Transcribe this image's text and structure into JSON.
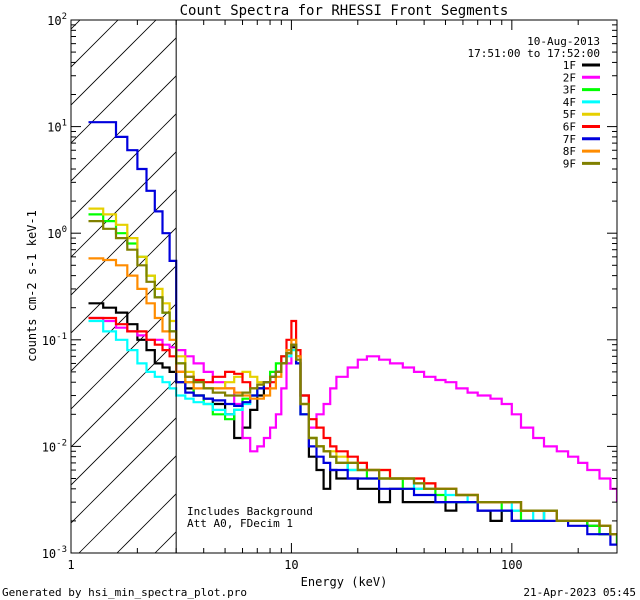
{
  "chart_data": {
    "type": "line",
    "title": "Count Spectra for RHESSI Front Segments",
    "xlabel": "Energy (keV)",
    "ylabel": "counts cm-2 s-1 keV-1",
    "xscale": "log",
    "yscale": "log",
    "xlim": [
      1,
      300
    ],
    "ylim": [
      0.001,
      100
    ],
    "x_tick_labels": [
      {
        "value": 1,
        "label": "1"
      },
      {
        "value": 10,
        "label": "10"
      },
      {
        "value": 100,
        "label": "100"
      }
    ],
    "y_tick_labels": [
      {
        "value": 0.001,
        "base": "10",
        "exp": "-3"
      },
      {
        "value": 0.01,
        "base": "10",
        "exp": "-2"
      },
      {
        "value": 0.1,
        "base": "10",
        "exp": "-1"
      },
      {
        "value": 1,
        "base": "10",
        "exp": "0"
      },
      {
        "value": 10,
        "base": "10",
        "exp": "1"
      },
      {
        "value": 100,
        "base": "10",
        "exp": "2"
      }
    ],
    "excluded_region": {
      "from": 1,
      "to": 3
    },
    "date_label": "10-Aug-2013",
    "time_label": "17:51:00 to 17:52:00",
    "annotations": [
      "Includes Background",
      "Att A0, FDecim 1"
    ],
    "series": [
      {
        "name": "1F",
        "color": "#000000",
        "x": [
          1.2,
          1.4,
          1.6,
          1.8,
          2.0,
          2.2,
          2.4,
          2.6,
          2.8,
          3.0,
          3.3,
          3.6,
          4.0,
          4.4,
          5,
          5.5,
          6,
          6.5,
          7,
          7.5,
          8,
          8.5,
          9,
          9.5,
          10,
          10.5,
          11,
          12,
          13,
          14,
          15,
          16,
          18,
          20,
          22,
          25,
          28,
          32,
          36,
          40,
          45,
          50,
          56,
          63,
          70,
          80,
          90,
          100,
          110,
          125,
          140,
          160,
          180,
          200,
          220,
          250,
          280,
          300
        ],
        "values": [
          0.22,
          0.2,
          0.18,
          0.14,
          0.1,
          0.08,
          0.06,
          0.055,
          0.05,
          0.04,
          0.035,
          0.03,
          0.028,
          0.025,
          0.02,
          0.012,
          0.015,
          0.022,
          0.03,
          0.04,
          0.045,
          0.05,
          0.06,
          0.075,
          0.085,
          0.07,
          0.03,
          0.008,
          0.006,
          0.004,
          0.006,
          0.005,
          0.005,
          0.004,
          0.004,
          0.003,
          0.004,
          0.003,
          0.003,
          0.003,
          0.003,
          0.0025,
          0.003,
          0.003,
          0.0025,
          0.002,
          0.0025,
          0.002,
          0.002,
          0.002,
          0.0025,
          0.002,
          0.002,
          0.002,
          0.0018,
          0.0015,
          0.0015,
          0.0012
        ]
      },
      {
        "name": "2F",
        "color": "#ff00ff",
        "x": [
          1.2,
          1.4,
          1.6,
          1.8,
          2.0,
          2.2,
          2.4,
          2.6,
          2.8,
          3.0,
          3.3,
          3.6,
          4.0,
          4.4,
          5,
          5.5,
          6,
          6.5,
          7,
          7.5,
          8,
          8.5,
          9,
          9.5,
          10,
          10.5,
          11,
          12,
          13,
          14,
          15,
          16,
          18,
          20,
          22,
          25,
          28,
          32,
          36,
          40,
          45,
          50,
          56,
          63,
          70,
          80,
          90,
          100,
          110,
          125,
          140,
          160,
          180,
          200,
          220,
          250,
          280,
          300
        ],
        "values": [
          0.16,
          0.15,
          0.13,
          0.12,
          0.11,
          0.1,
          0.1,
          0.09,
          0.085,
          0.08,
          0.07,
          0.06,
          0.05,
          0.04,
          0.035,
          0.025,
          0.012,
          0.009,
          0.01,
          0.012,
          0.015,
          0.02,
          0.035,
          0.06,
          0.09,
          0.06,
          0.02,
          0.015,
          0.02,
          0.025,
          0.035,
          0.045,
          0.055,
          0.065,
          0.07,
          0.065,
          0.06,
          0.055,
          0.05,
          0.045,
          0.042,
          0.04,
          0.035,
          0.032,
          0.03,
          0.028,
          0.025,
          0.02,
          0.015,
          0.012,
          0.01,
          0.009,
          0.008,
          0.007,
          0.006,
          0.005,
          0.004,
          0.003
        ]
      },
      {
        "name": "3F",
        "color": "#00ff00",
        "x": [
          1.2,
          1.4,
          1.6,
          1.8,
          2.0,
          2.2,
          2.4,
          2.6,
          2.8,
          3.0,
          3.3,
          3.6,
          4.0,
          4.4,
          5,
          5.5,
          6,
          6.5,
          7,
          7.5,
          8,
          8.5,
          9,
          9.5,
          10,
          10.5,
          11,
          12,
          13,
          14,
          15,
          16,
          18,
          20,
          22,
          25,
          28,
          32,
          36,
          40,
          45,
          50,
          56,
          63,
          70,
          80,
          90,
          100,
          110,
          125,
          140,
          160,
          180,
          200,
          220,
          250,
          280,
          300
        ],
        "values": [
          1.5,
          1.3,
          1.0,
          0.8,
          0.6,
          0.4,
          0.25,
          0.18,
          0.12,
          0.06,
          0.04,
          0.03,
          0.025,
          0.02,
          0.018,
          0.022,
          0.028,
          0.03,
          0.035,
          0.04,
          0.05,
          0.06,
          0.07,
          0.08,
          0.09,
          0.06,
          0.02,
          0.012,
          0.01,
          0.009,
          0.008,
          0.007,
          0.006,
          0.006,
          0.005,
          0.005,
          0.005,
          0.004,
          0.004,
          0.004,
          0.0035,
          0.003,
          0.003,
          0.003,
          0.003,
          0.003,
          0.0025,
          0.0025,
          0.002,
          0.002,
          0.0025,
          0.002,
          0.002,
          0.002,
          0.0018,
          0.0015,
          0.0015,
          0.0012
        ]
      },
      {
        "name": "4F",
        "color": "#00ffff",
        "x": [
          1.2,
          1.4,
          1.6,
          1.8,
          2.0,
          2.2,
          2.4,
          2.6,
          2.8,
          3.0,
          3.3,
          3.6,
          4.0,
          4.4,
          5,
          5.5,
          6,
          6.5,
          7,
          7.5,
          8,
          8.5,
          9,
          9.5,
          10,
          10.5,
          11,
          12,
          13,
          14,
          15,
          16,
          18,
          20,
          22,
          25,
          28,
          32,
          36,
          40,
          45,
          50,
          56,
          63,
          70,
          80,
          90,
          100,
          110,
          125,
          140,
          160,
          180,
          200,
          220,
          250,
          280,
          300
        ],
        "values": [
          0.15,
          0.12,
          0.1,
          0.08,
          0.06,
          0.05,
          0.045,
          0.04,
          0.035,
          0.03,
          0.028,
          0.026,
          0.025,
          0.022,
          0.02,
          0.022,
          0.025,
          0.03,
          0.035,
          0.04,
          0.045,
          0.05,
          0.06,
          0.07,
          0.08,
          0.06,
          0.02,
          0.012,
          0.01,
          0.009,
          0.008,
          0.007,
          0.006,
          0.006,
          0.006,
          0.005,
          0.005,
          0.005,
          0.004,
          0.004,
          0.004,
          0.0035,
          0.0035,
          0.003,
          0.003,
          0.003,
          0.003,
          0.0025,
          0.0025,
          0.002,
          0.0025,
          0.002,
          0.002,
          0.002,
          0.002,
          0.0018,
          0.0015,
          0.0015
        ]
      },
      {
        "name": "5F",
        "color": "#e6d000",
        "x": [
          1.2,
          1.4,
          1.6,
          1.8,
          2.0,
          2.2,
          2.4,
          2.6,
          2.8,
          3.0,
          3.3,
          3.6,
          4.0,
          4.4,
          5,
          5.5,
          6,
          6.5,
          7,
          7.5,
          8,
          8.5,
          9,
          9.5,
          10,
          10.5,
          11,
          12,
          13,
          14,
          15,
          16,
          18,
          20,
          22,
          25,
          28,
          32,
          36,
          40,
          45,
          50,
          56,
          63,
          70,
          80,
          90,
          100,
          110,
          125,
          140,
          160,
          180,
          200,
          220,
          250,
          280,
          300
        ],
        "values": [
          1.7,
          1.5,
          1.2,
          0.9,
          0.6,
          0.4,
          0.3,
          0.22,
          0.15,
          0.07,
          0.05,
          0.04,
          0.035,
          0.035,
          0.04,
          0.045,
          0.05,
          0.045,
          0.04,
          0.04,
          0.045,
          0.05,
          0.06,
          0.075,
          0.09,
          0.07,
          0.025,
          0.012,
          0.01,
          0.009,
          0.009,
          0.008,
          0.007,
          0.007,
          0.006,
          0.006,
          0.005,
          0.005,
          0.005,
          0.0045,
          0.004,
          0.004,
          0.0035,
          0.0035,
          0.003,
          0.003,
          0.003,
          0.003,
          0.0025,
          0.0025,
          0.0025,
          0.002,
          0.002,
          0.002,
          0.002,
          0.0018,
          0.0015,
          0.0015
        ]
      },
      {
        "name": "6F",
        "color": "#ff0000",
        "x": [
          1.2,
          1.4,
          1.6,
          1.8,
          2.0,
          2.2,
          2.4,
          2.6,
          2.8,
          3.0,
          3.3,
          3.6,
          4.0,
          4.4,
          5,
          5.5,
          6,
          6.5,
          7,
          7.5,
          8,
          8.5,
          9,
          9.5,
          10,
          10.5,
          11,
          12,
          13,
          14,
          15,
          16,
          18,
          20,
          22,
          25,
          28,
          32,
          36,
          40,
          45,
          50,
          56,
          63,
          70,
          80,
          90,
          100,
          110,
          125,
          140,
          160,
          180,
          200,
          220,
          250,
          280,
          300
        ],
        "values": [
          0.16,
          0.16,
          0.14,
          0.12,
          0.12,
          0.1,
          0.09,
          0.08,
          0.07,
          0.05,
          0.045,
          0.042,
          0.04,
          0.045,
          0.05,
          0.048,
          0.04,
          0.035,
          0.035,
          0.035,
          0.04,
          0.05,
          0.07,
          0.1,
          0.15,
          0.08,
          0.03,
          0.018,
          0.015,
          0.012,
          0.01,
          0.009,
          0.008,
          0.007,
          0.006,
          0.006,
          0.005,
          0.005,
          0.005,
          0.0045,
          0.004,
          0.004,
          0.0035,
          0.0035,
          0.003,
          0.003,
          0.003,
          0.003,
          0.0025,
          0.0025,
          0.0025,
          0.002,
          0.002,
          0.002,
          0.002,
          0.0018,
          0.0015,
          0.0015
        ]
      },
      {
        "name": "7F",
        "color": "#0000dd",
        "x": [
          1.2,
          1.4,
          1.6,
          1.8,
          2.0,
          2.2,
          2.4,
          2.6,
          2.8,
          3.0,
          3.3,
          3.6,
          4.0,
          4.4,
          5,
          5.5,
          6,
          6.5,
          7,
          7.5,
          8,
          8.5,
          9,
          9.5,
          10,
          10.5,
          11,
          12,
          13,
          14,
          15,
          16,
          18,
          20,
          22,
          25,
          28,
          32,
          36,
          40,
          45,
          50,
          56,
          63,
          70,
          80,
          90,
          100,
          110,
          125,
          140,
          160,
          180,
          200,
          220,
          250,
          280,
          300
        ],
        "values": [
          11,
          11,
          8,
          6,
          4,
          2.5,
          1.6,
          1.0,
          0.55,
          0.04,
          0.032,
          0.03,
          0.028,
          0.027,
          0.025,
          0.024,
          0.026,
          0.03,
          0.035,
          0.04,
          0.045,
          0.05,
          0.06,
          0.075,
          0.09,
          0.06,
          0.02,
          0.01,
          0.008,
          0.007,
          0.006,
          0.006,
          0.005,
          0.005,
          0.005,
          0.004,
          0.004,
          0.004,
          0.0035,
          0.0035,
          0.003,
          0.003,
          0.003,
          0.003,
          0.0025,
          0.0025,
          0.0025,
          0.002,
          0.002,
          0.002,
          0.002,
          0.002,
          0.0018,
          0.0018,
          0.0015,
          0.0015,
          0.0012,
          0.0012
        ]
      },
      {
        "name": "8F",
        "color": "#ff8c00",
        "x": [
          1.2,
          1.4,
          1.6,
          1.8,
          2.0,
          2.2,
          2.4,
          2.6,
          2.8,
          3.0,
          3.3,
          3.6,
          4.0,
          4.4,
          5,
          5.5,
          6,
          6.5,
          7,
          7.5,
          8,
          8.5,
          9,
          9.5,
          10,
          10.5,
          11,
          12,
          13,
          14,
          15,
          16,
          18,
          20,
          22,
          25,
          28,
          32,
          36,
          40,
          45,
          50,
          56,
          63,
          70,
          80,
          90,
          100,
          110,
          125,
          140,
          160,
          180,
          200,
          220,
          250,
          280,
          300
        ],
        "values": [
          0.58,
          0.56,
          0.5,
          0.4,
          0.3,
          0.22,
          0.16,
          0.12,
          0.1,
          0.05,
          0.04,
          0.035,
          0.035,
          0.035,
          0.035,
          0.032,
          0.03,
          0.028,
          0.028,
          0.03,
          0.035,
          0.045,
          0.06,
          0.08,
          0.1,
          0.07,
          0.025,
          0.012,
          0.01,
          0.009,
          0.008,
          0.007,
          0.007,
          0.006,
          0.006,
          0.005,
          0.005,
          0.005,
          0.0045,
          0.004,
          0.004,
          0.004,
          0.0035,
          0.0035,
          0.003,
          0.003,
          0.003,
          0.003,
          0.0025,
          0.0025,
          0.0025,
          0.002,
          0.002,
          0.002,
          0.002,
          0.0018,
          0.0015,
          0.0015
        ]
      },
      {
        "name": "9F",
        "color": "#808000",
        "x": [
          1.2,
          1.4,
          1.6,
          1.8,
          2.0,
          2.2,
          2.4,
          2.6,
          2.8,
          3.0,
          3.3,
          3.6,
          4.0,
          4.4,
          5,
          5.5,
          6,
          6.5,
          7,
          7.5,
          8,
          8.5,
          9,
          9.5,
          10,
          10.5,
          11,
          12,
          13,
          14,
          15,
          16,
          18,
          20,
          22,
          25,
          28,
          32,
          36,
          40,
          45,
          50,
          56,
          63,
          70,
          80,
          90,
          100,
          110,
          125,
          140,
          160,
          180,
          200,
          220,
          250,
          280,
          300
        ],
        "values": [
          1.3,
          1.1,
          0.9,
          0.7,
          0.5,
          0.35,
          0.25,
          0.18,
          0.12,
          0.06,
          0.045,
          0.04,
          0.035,
          0.032,
          0.03,
          0.03,
          0.032,
          0.035,
          0.038,
          0.04,
          0.045,
          0.05,
          0.06,
          0.075,
          0.09,
          0.065,
          0.025,
          0.012,
          0.01,
          0.009,
          0.008,
          0.007,
          0.007,
          0.006,
          0.006,
          0.005,
          0.005,
          0.005,
          0.0045,
          0.004,
          0.004,
          0.004,
          0.0035,
          0.0035,
          0.003,
          0.003,
          0.003,
          0.003,
          0.0025,
          0.0025,
          0.0025,
          0.002,
          0.002,
          0.002,
          0.002,
          0.0018,
          0.0015,
          0.0015
        ]
      }
    ]
  },
  "footer": {
    "generated_by": "Generated by hsi_min_spectra_plot.pro",
    "timestamp": "21-Apr-2023 05:45"
  }
}
